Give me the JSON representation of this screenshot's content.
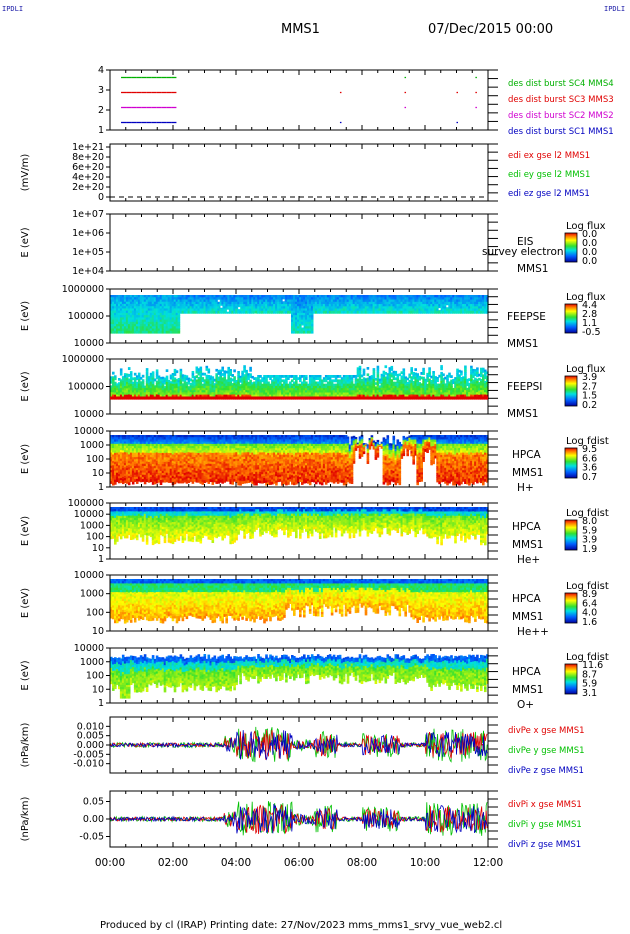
{
  "header": {
    "corner_left": "IPDLI",
    "corner_right": "IPDLI",
    "spacecraft": "MMS1",
    "date_time": "07/Dec/2015 00:00"
  },
  "footer": {
    "text": "Produced by cl (IRAP)   Printing date: 27/Nov/2023   mms_mms1_srvy_vue_web2.cl"
  },
  "colors": {
    "red": "#e00000",
    "green": "#00c000",
    "blue": "#0000c0",
    "magenta": "#d000d0",
    "burst4": "#00b000"
  },
  "time_axis": {
    "ticks": [
      "00:00",
      "02:00",
      "04:00",
      "06:00",
      "08:00",
      "10:00",
      "12:00"
    ],
    "range_hours": [
      0,
      12
    ]
  },
  "chart_data": [
    {
      "type": "line",
      "ylim": [
        0.5,
        4.5
      ],
      "yticks": [
        "1",
        "2",
        "3",
        "4"
      ],
      "series": [
        {
          "name": "des dist burst SC1 MMS1",
          "level": 1
        },
        {
          "name": "des dist burst SC2 MMS2",
          "level": 2
        },
        {
          "name": "des dist burst SC3 MMS3",
          "level": 3
        },
        {
          "name": "des dist burst SC4 MMS4",
          "level": 4
        }
      ]
    },
    {
      "type": "line",
      "ylabel": "(mV/m)",
      "yticks": [
        "0",
        "2e+20",
        "4e+20",
        "6e+20",
        "8e+20",
        "1e+21"
      ],
      "series": [
        {
          "name": "edi ex gse l2 MMS1"
        },
        {
          "name": "edi ey gse l2 MMS1"
        },
        {
          "name": "edi ez gse l2 MMS1"
        }
      ]
    },
    {
      "type": "heatmap",
      "ylabel": "E (eV)",
      "yticks": [
        "1e+07",
        "1e+06",
        "1e+05",
        "1e+04"
      ],
      "labels": [
        "EIS",
        "MMS1"
      ],
      "overlay": "survey electron to",
      "colorbar": {
        "title": "Log flux",
        "ticks": [
          "0.0",
          "0.0",
          "0.0",
          "0.0"
        ]
      }
    },
    {
      "type": "heatmap",
      "ylabel": "E (eV)",
      "yticks": [
        "1000000",
        "100000",
        "10000"
      ],
      "labels": [
        "FEEPSE",
        "MMS1"
      ],
      "colorbar": {
        "title": "Log flux",
        "ticks": [
          "4.4",
          "2.8",
          "1.1",
          "-0.5"
        ]
      }
    },
    {
      "type": "heatmap",
      "ylabel": "E (eV)",
      "yticks": [
        "1000000",
        "100000",
        "10000"
      ],
      "labels": [
        "FEEPSI",
        "MMS1"
      ],
      "colorbar": {
        "title": "Log flux",
        "ticks": [
          "3.9",
          "2.7",
          "1.5",
          "0.2"
        ]
      }
    },
    {
      "type": "heatmap",
      "ylabel": "E (eV)",
      "yticks": [
        "10000",
        "1000",
        "100",
        "10",
        "1"
      ],
      "labels": [
        "HPCA",
        "MMS1",
        "H+"
      ],
      "colorbar": {
        "title": "Log fdist",
        "ticks": [
          "9.5",
          "6.6",
          "3.6",
          "0.7"
        ]
      }
    },
    {
      "type": "heatmap",
      "ylabel": "E (eV)",
      "yticks": [
        "100000",
        "10000",
        "1000",
        "100",
        "10",
        "1"
      ],
      "labels": [
        "HPCA",
        "MMS1",
        "He+"
      ],
      "colorbar": {
        "title": "Log fdist",
        "ticks": [
          "8.0",
          "5.9",
          "3.9",
          "1.9"
        ]
      }
    },
    {
      "type": "heatmap",
      "ylabel": "E (eV)",
      "yticks": [
        "10000",
        "1000",
        "100",
        "10"
      ],
      "labels": [
        "HPCA",
        "MMS1",
        "He++"
      ],
      "colorbar": {
        "title": "Log fdist",
        "ticks": [
          "8.9",
          "6.4",
          "4.0",
          "1.6"
        ]
      }
    },
    {
      "type": "heatmap",
      "ylabel": "E (eV)",
      "yticks": [
        "10000",
        "1000",
        "100",
        "10",
        "1"
      ],
      "labels": [
        "HPCA",
        "MMS1",
        "O+"
      ],
      "colorbar": {
        "title": "Log fdist",
        "ticks": [
          "11.6",
          "8.7",
          "5.9",
          "3.1"
        ]
      }
    },
    {
      "type": "line",
      "ylabel": "(nPa/km)",
      "yticks": [
        "0.010",
        "0.005",
        "0.000",
        "-0.005",
        "-0.010"
      ],
      "ylim": [
        -0.015,
        0.015
      ],
      "series": [
        {
          "name": "divPe x gse MMS1"
        },
        {
          "name": "divPe y gse MMS1"
        },
        {
          "name": "divPe z gse MMS1"
        }
      ]
    },
    {
      "type": "line",
      "ylabel": "(nPa/km)",
      "yticks": [
        "0.05",
        "0.00",
        "-0.05"
      ],
      "ylim": [
        -0.08,
        0.08
      ],
      "series": [
        {
          "name": "divPi x gse MMS1"
        },
        {
          "name": "divPi y gse MMS1"
        },
        {
          "name": "divPi z gse MMS1"
        }
      ]
    }
  ]
}
